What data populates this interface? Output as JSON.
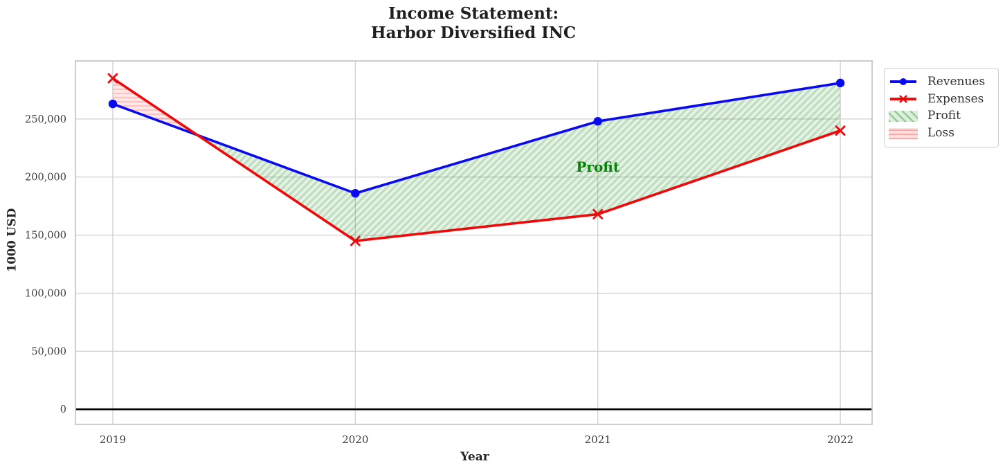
{
  "chart_data": {
    "type": "line",
    "title_line1": "Income Statement:",
    "title_line2": "Harbor Diversified INC",
    "xlabel": "Year",
    "ylabel": "1000 USD",
    "x": [
      2019,
      2020,
      2021,
      2022
    ],
    "series": [
      {
        "name": "Revenues",
        "values": [
          263000,
          186000,
          248000,
          281000
        ],
        "color": "#0a0aee",
        "marker": "circle"
      },
      {
        "name": "Expenses",
        "values": [
          285000,
          145000,
          168000,
          240000
        ],
        "color": "#ee0a0a",
        "marker": "x"
      }
    ],
    "fills": [
      {
        "name": "Profit",
        "condition": "revenues_above_expenses",
        "color": "#008000",
        "hatch": "diagonal"
      },
      {
        "name": "Loss",
        "condition": "expenses_above_revenues",
        "color": "#ff0000",
        "hatch": "horizontal"
      }
    ],
    "annotation": {
      "text": "Profit",
      "x": 2021,
      "y": 209000,
      "color": "#068306"
    },
    "xtick_labels": [
      "2019",
      "2020",
      "2021",
      "2022"
    ],
    "yticks": [
      0,
      50000,
      100000,
      150000,
      200000,
      250000
    ],
    "ytick_labels": [
      "0",
      "50,000",
      "100,000",
      "150,000",
      "200,000",
      "250,000"
    ],
    "xlim": [
      2018.846,
      2022.131
    ],
    "ylim": [
      -13000,
      300000
    ],
    "grid": true,
    "zero_line_color": "#000000",
    "legend": {
      "position": "outside upper right",
      "entries": [
        "Revenues",
        "Expenses",
        "Profit",
        "Loss"
      ]
    }
  }
}
